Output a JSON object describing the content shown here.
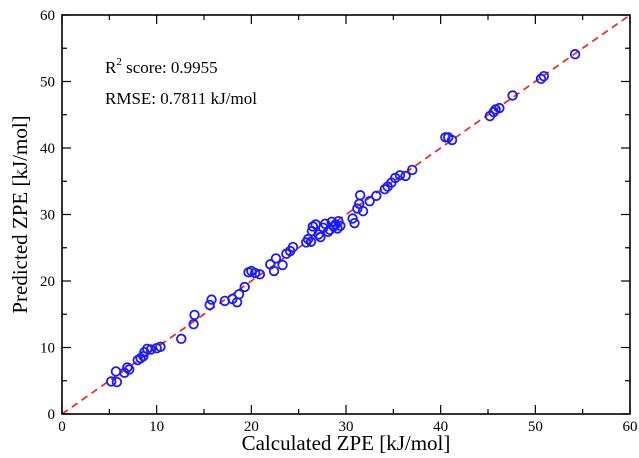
{
  "chart_data": {
    "type": "scatter",
    "title": "",
    "xlabel": "Calculated ZPE [kJ/mol]",
    "ylabel": "Predicted ZPE [kJ/mol]",
    "xlim": [
      0,
      60
    ],
    "ylim": [
      0,
      60
    ],
    "xticks": [
      "0",
      "10",
      "20",
      "30",
      "40",
      "50",
      "60"
    ],
    "yticks": [
      "0",
      "10",
      "20",
      "30",
      "40",
      "50",
      "60"
    ],
    "grid": false,
    "annotations": {
      "r2_prefix": "R",
      "r2_sup": "2",
      "r2_text": " score: 0.9955",
      "rmse_text": "RMSE: 0.7811 kJ/mol"
    },
    "reference_line": {
      "x": [
        0,
        60
      ],
      "y": [
        0,
        60
      ],
      "color": "#e8312a",
      "style": "dashed"
    },
    "marker_color": "#1a1aff",
    "series": [
      {
        "points": [
          [
            5.2,
            4.9
          ],
          [
            5.8,
            4.8
          ],
          [
            5.7,
            6.4
          ],
          [
            6.6,
            6.2
          ],
          [
            6.9,
            7.0
          ],
          [
            7.1,
            6.7
          ],
          [
            8.0,
            8.1
          ],
          [
            8.3,
            8.4
          ],
          [
            8.6,
            8.7
          ],
          [
            8.7,
            9.3
          ],
          [
            9.0,
            9.8
          ],
          [
            9.4,
            9.7
          ],
          [
            10.0,
            9.9
          ],
          [
            10.4,
            10.1
          ],
          [
            12.6,
            11.3
          ],
          [
            13.9,
            13.5
          ],
          [
            14.0,
            14.9
          ],
          [
            15.6,
            16.4
          ],
          [
            15.8,
            17.2
          ],
          [
            17.2,
            17.0
          ],
          [
            18.0,
            17.3
          ],
          [
            18.5,
            16.8
          ],
          [
            18.7,
            18.0
          ],
          [
            19.3,
            19.1
          ],
          [
            19.7,
            21.3
          ],
          [
            20.0,
            21.5
          ],
          [
            20.4,
            21.2
          ],
          [
            20.9,
            21.0
          ],
          [
            22.0,
            22.5
          ],
          [
            22.4,
            21.5
          ],
          [
            22.6,
            23.4
          ],
          [
            23.3,
            22.4
          ],
          [
            23.7,
            24.1
          ],
          [
            24.1,
            24.5
          ],
          [
            24.4,
            25.1
          ],
          [
            25.8,
            25.8
          ],
          [
            26.0,
            26.3
          ],
          [
            26.3,
            25.9
          ],
          [
            26.4,
            27.5
          ],
          [
            26.5,
            28.2
          ],
          [
            26.8,
            28.5
          ],
          [
            27.1,
            27.0
          ],
          [
            27.3,
            26.6
          ],
          [
            27.6,
            28.0
          ],
          [
            27.8,
            28.6
          ],
          [
            28.1,
            27.4
          ],
          [
            28.3,
            27.7
          ],
          [
            28.5,
            28.9
          ],
          [
            28.7,
            28.2
          ],
          [
            28.9,
            28.5
          ],
          [
            29.1,
            27.9
          ],
          [
            29.2,
            29.0
          ],
          [
            29.4,
            28.3
          ],
          [
            30.7,
            29.4
          ],
          [
            30.9,
            28.7
          ],
          [
            31.2,
            30.9
          ],
          [
            31.4,
            31.6
          ],
          [
            31.5,
            32.9
          ],
          [
            31.8,
            30.5
          ],
          [
            32.5,
            32.0
          ],
          [
            33.2,
            32.8
          ],
          [
            34.1,
            33.8
          ],
          [
            34.4,
            34.2
          ],
          [
            34.8,
            34.8
          ],
          [
            35.2,
            35.5
          ],
          [
            35.7,
            35.9
          ],
          [
            36.3,
            35.8
          ],
          [
            37.0,
            36.7
          ],
          [
            40.5,
            41.6
          ],
          [
            40.8,
            41.6
          ],
          [
            41.2,
            41.2
          ],
          [
            45.2,
            44.8
          ],
          [
            45.6,
            45.4
          ],
          [
            45.8,
            45.8
          ],
          [
            46.2,
            46.0
          ],
          [
            47.6,
            47.9
          ],
          [
            50.6,
            50.4
          ],
          [
            50.9,
            50.8
          ],
          [
            54.2,
            54.1
          ]
        ]
      }
    ]
  }
}
